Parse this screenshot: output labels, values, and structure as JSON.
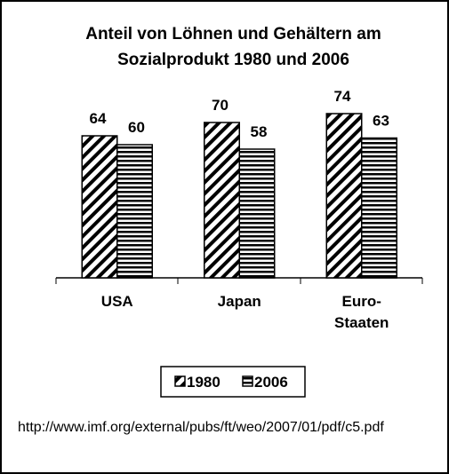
{
  "chart_data": {
    "type": "bar",
    "title": "Anteil von Löhnen und Gehältern am Sozialprodukt 1980 und 2006",
    "categories": [
      "USA",
      "Japan",
      "Euro-\nStaaten"
    ],
    "series": [
      {
        "name": "1980",
        "color": "#000000",
        "pattern": "diagonal",
        "values": [
          64,
          70,
          74
        ]
      },
      {
        "name": "2006",
        "color": "#993366",
        "pattern": "horizontal",
        "values": [
          60,
          58,
          63
        ]
      }
    ],
    "legend": "bottom",
    "source": "http://www.imf.org/external/pubs/ft/weo/2007/01/pdf/c5.pdf"
  }
}
